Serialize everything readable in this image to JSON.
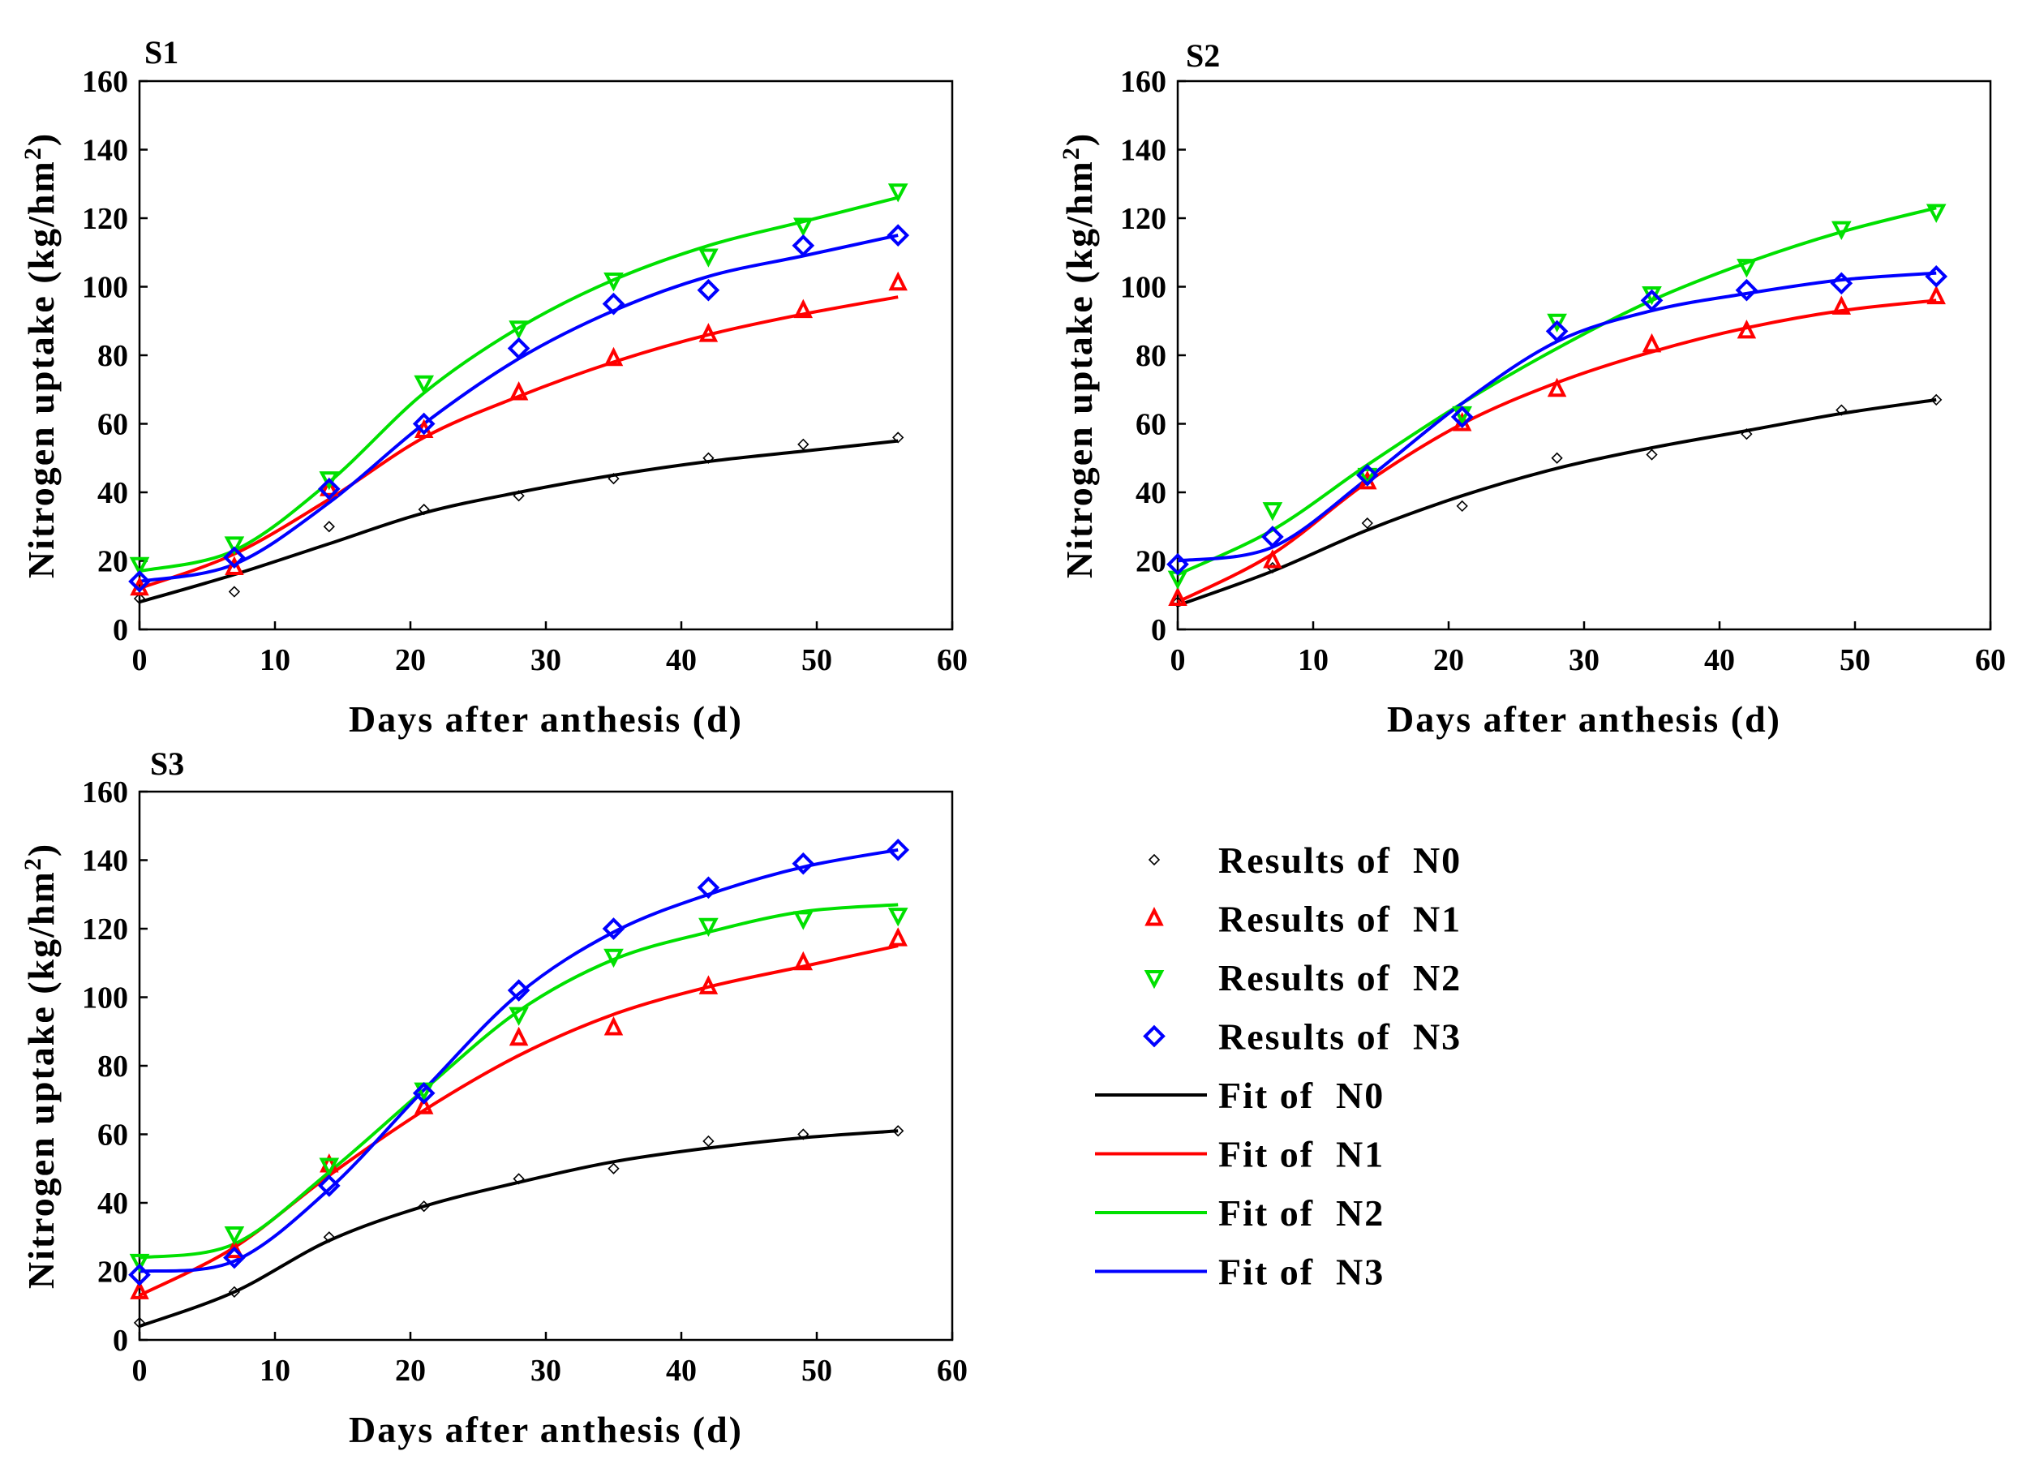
{
  "chart_data": [
    {
      "type": "line",
      "title": "S1",
      "xlabel": "Days after anthesis (d)",
      "ylabel": "Nitrogen uptake (kg/hm",
      "ylabel_sup": "2",
      "ylabel_end": ")",
      "xlim": [
        0,
        60
      ],
      "ylim": [
        0,
        160
      ],
      "xticks": [
        "0",
        "10",
        "20",
        "30",
        "40",
        "50",
        "60"
      ],
      "yticks": [
        "0",
        "20",
        "40",
        "60",
        "80",
        "100",
        "120",
        "140",
        "160"
      ],
      "x": [
        0,
        7,
        14,
        21,
        28,
        35,
        42,
        49,
        56
      ],
      "series": [
        {
          "name": "Results of N0",
          "kind": "points",
          "marker": "diamond-small",
          "values": [
            9,
            11,
            30,
            35,
            39,
            44,
            50,
            54,
            56
          ]
        },
        {
          "name": "Results of N1",
          "kind": "points",
          "marker": "triangle-up",
          "values": [
            12,
            18,
            41,
            58,
            69,
            79,
            86,
            93,
            101
          ]
        },
        {
          "name": "Results of N2",
          "kind": "points",
          "marker": "triangle-down",
          "values": [
            19,
            25,
            44,
            72,
            88,
            102,
            109,
            118,
            128
          ]
        },
        {
          "name": "Results of N3",
          "kind": "points",
          "marker": "diamond",
          "values": [
            14,
            21,
            41,
            60,
            82,
            95,
            99,
            112,
            115
          ]
        },
        {
          "name": "Fit of N0",
          "kind": "fit",
          "values": [
            8,
            16,
            25,
            34,
            40,
            45,
            49,
            52,
            55
          ]
        },
        {
          "name": "Fit of N1",
          "kind": "fit",
          "values": [
            12,
            22,
            38,
            56,
            68,
            78,
            86,
            92,
            97
          ]
        },
        {
          "name": "Fit of N2",
          "kind": "fit",
          "values": [
            17,
            23,
            43,
            69,
            88,
            102,
            112,
            119,
            126
          ]
        },
        {
          "name": "Fit of N3",
          "kind": "fit",
          "values": [
            14,
            19,
            37,
            60,
            79,
            93,
            103,
            109,
            115
          ]
        }
      ]
    },
    {
      "type": "line",
      "title": "S2",
      "xlabel": "Days after anthesis (d)",
      "ylabel": "Nitrogen uptake (kg/hm",
      "ylabel_sup": "2",
      "ylabel_end": ")",
      "xlim": [
        0,
        60
      ],
      "ylim": [
        0,
        160
      ],
      "xticks": [
        "0",
        "10",
        "20",
        "30",
        "40",
        "50",
        "60"
      ],
      "yticks": [
        "0",
        "20",
        "40",
        "60",
        "80",
        "100",
        "120",
        "140",
        "160"
      ],
      "x": [
        0,
        7,
        14,
        21,
        28,
        35,
        42,
        49,
        56
      ],
      "series": [
        {
          "name": "Results of N0",
          "kind": "points",
          "marker": "diamond-small",
          "values": [
            8,
            18,
            31,
            36,
            50,
            51,
            57,
            64,
            67
          ]
        },
        {
          "name": "Results of N1",
          "kind": "points",
          "marker": "triangle-up",
          "values": [
            9,
            20,
            43,
            60,
            70,
            83,
            87,
            94,
            97
          ]
        },
        {
          "name": "Results of N2",
          "kind": "points",
          "marker": "triangle-down",
          "values": [
            15,
            35,
            45,
            63,
            90,
            98,
            106,
            117,
            122
          ]
        },
        {
          "name": "Results of N3",
          "kind": "points",
          "marker": "diamond",
          "values": [
            19,
            27,
            45,
            62,
            87,
            96,
            99,
            101,
            103
          ]
        },
        {
          "name": "Fit of N0",
          "kind": "fit",
          "values": [
            7,
            17,
            29,
            39,
            47,
            53,
            58,
            63,
            67
          ]
        },
        {
          "name": "Fit of N1",
          "kind": "fit",
          "values": [
            8,
            22,
            43,
            60,
            72,
            81,
            88,
            93,
            96
          ]
        },
        {
          "name": "Fit of N2",
          "kind": "fit",
          "values": [
            16,
            29,
            48,
            66,
            82,
            96,
            107,
            116,
            123
          ]
        },
        {
          "name": "Fit of N3",
          "kind": "fit",
          "values": [
            20,
            24,
            44,
            66,
            84,
            93,
            98,
            102,
            104
          ]
        }
      ]
    },
    {
      "type": "line",
      "title": "S3",
      "xlabel": "Days after anthesis (d)",
      "ylabel": "Nitrogen uptake (kg/hm",
      "ylabel_sup": "2",
      "ylabel_end": ")",
      "xlim": [
        0,
        60
      ],
      "ylim": [
        0,
        160
      ],
      "xticks": [
        "0",
        "10",
        "20",
        "30",
        "40",
        "50",
        "60"
      ],
      "yticks": [
        "0",
        "20",
        "40",
        "60",
        "80",
        "100",
        "120",
        "140",
        "160"
      ],
      "x": [
        0,
        7,
        14,
        21,
        28,
        35,
        42,
        49,
        56
      ],
      "series": [
        {
          "name": "Results of N0",
          "kind": "points",
          "marker": "diamond-small",
          "values": [
            5,
            14,
            30,
            39,
            47,
            50,
            58,
            60,
            61
          ]
        },
        {
          "name": "Results of N1",
          "kind": "points",
          "marker": "triangle-up",
          "values": [
            14,
            26,
            51,
            68,
            88,
            91,
            103,
            110,
            117
          ]
        },
        {
          "name": "Results of N2",
          "kind": "points",
          "marker": "triangle-down",
          "values": [
            23,
            31,
            51,
            73,
            95,
            112,
            121,
            123,
            124
          ]
        },
        {
          "name": "Results of N3",
          "kind": "points",
          "marker": "diamond",
          "values": [
            19,
            24,
            45,
            72,
            102,
            120,
            132,
            139,
            143
          ]
        },
        {
          "name": "Fit of N0",
          "kind": "fit",
          "values": [
            4,
            14,
            29,
            39,
            46,
            52,
            56,
            59,
            61
          ]
        },
        {
          "name": "Fit of N1",
          "kind": "fit",
          "values": [
            13,
            27,
            48,
            67,
            83,
            95,
            103,
            109,
            115
          ]
        },
        {
          "name": "Fit of N2",
          "kind": "fit",
          "values": [
            24,
            28,
            49,
            73,
            96,
            111,
            119,
            125,
            127
          ]
        },
        {
          "name": "Fit of N3",
          "kind": "fit",
          "values": [
            20,
            23,
            44,
            73,
            101,
            119,
            130,
            138,
            143
          ]
        }
      ]
    }
  ],
  "legend": {
    "items": [
      {
        "label": "Results of  N0",
        "kind": "marker",
        "marker": "diamond-small",
        "color": "#000000"
      },
      {
        "label": "Results of  N1",
        "kind": "marker",
        "marker": "triangle-up",
        "color": "#ff0000"
      },
      {
        "label": "Results of  N2",
        "kind": "marker",
        "marker": "triangle-down",
        "color": "#00e000"
      },
      {
        "label": "Results of  N3",
        "kind": "marker",
        "marker": "diamond",
        "color": "#0000ff"
      },
      {
        "label": "Fit of  N0",
        "kind": "line",
        "color": "#000000"
      },
      {
        "label": "Fit of  N1",
        "kind": "line",
        "color": "#ff0000"
      },
      {
        "label": "Fit of  N2",
        "kind": "line",
        "color": "#00e000"
      },
      {
        "label": "Fit of  N3",
        "kind": "line",
        "color": "#0000ff"
      }
    ]
  },
  "colors": {
    "N0": "#000000",
    "N1": "#ff0000",
    "N2": "#00e000",
    "N3": "#0000ff"
  }
}
